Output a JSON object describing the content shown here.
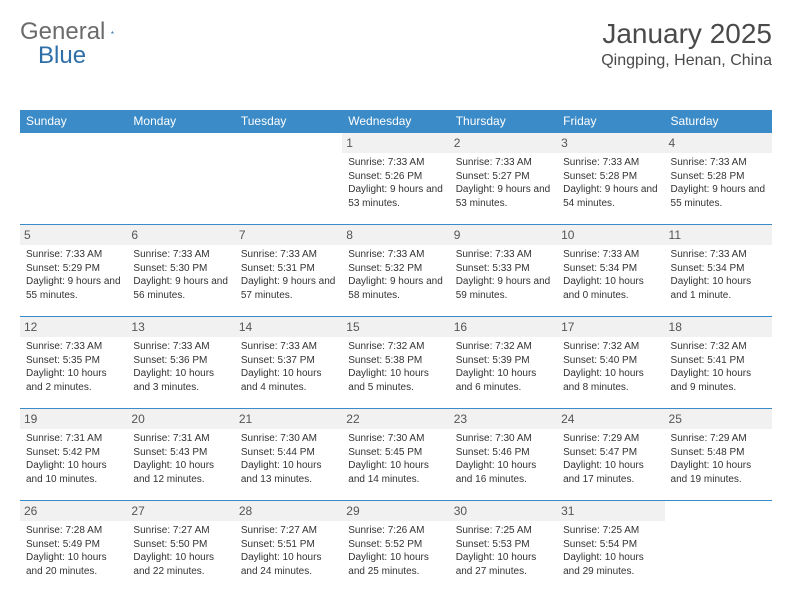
{
  "brand": {
    "text_gray": "General",
    "text_blue": "Blue"
  },
  "title": "January 2025",
  "location": "Qingping, Henan, China",
  "colors": {
    "header_bg": "#3b8bc8",
    "header_text": "#ffffff",
    "border": "#3b8bc8",
    "daynum_bg": "#f1f1f1",
    "text": "#333333",
    "brand_gray": "#6b6b6b",
    "brand_blue": "#2f6fa8"
  },
  "weekdays": [
    "Sunday",
    "Monday",
    "Tuesday",
    "Wednesday",
    "Thursday",
    "Friday",
    "Saturday"
  ],
  "weeks": [
    [
      null,
      null,
      null,
      {
        "n": "1",
        "sunrise": "7:33 AM",
        "sunset": "5:26 PM",
        "daylight": "9 hours and 53 minutes."
      },
      {
        "n": "2",
        "sunrise": "7:33 AM",
        "sunset": "5:27 PM",
        "daylight": "9 hours and 53 minutes."
      },
      {
        "n": "3",
        "sunrise": "7:33 AM",
        "sunset": "5:28 PM",
        "daylight": "9 hours and 54 minutes."
      },
      {
        "n": "4",
        "sunrise": "7:33 AM",
        "sunset": "5:28 PM",
        "daylight": "9 hours and 55 minutes."
      }
    ],
    [
      {
        "n": "5",
        "sunrise": "7:33 AM",
        "sunset": "5:29 PM",
        "daylight": "9 hours and 55 minutes."
      },
      {
        "n": "6",
        "sunrise": "7:33 AM",
        "sunset": "5:30 PM",
        "daylight": "9 hours and 56 minutes."
      },
      {
        "n": "7",
        "sunrise": "7:33 AM",
        "sunset": "5:31 PM",
        "daylight": "9 hours and 57 minutes."
      },
      {
        "n": "8",
        "sunrise": "7:33 AM",
        "sunset": "5:32 PM",
        "daylight": "9 hours and 58 minutes."
      },
      {
        "n": "9",
        "sunrise": "7:33 AM",
        "sunset": "5:33 PM",
        "daylight": "9 hours and 59 minutes."
      },
      {
        "n": "10",
        "sunrise": "7:33 AM",
        "sunset": "5:34 PM",
        "daylight": "10 hours and 0 minutes."
      },
      {
        "n": "11",
        "sunrise": "7:33 AM",
        "sunset": "5:34 PM",
        "daylight": "10 hours and 1 minute."
      }
    ],
    [
      {
        "n": "12",
        "sunrise": "7:33 AM",
        "sunset": "5:35 PM",
        "daylight": "10 hours and 2 minutes."
      },
      {
        "n": "13",
        "sunrise": "7:33 AM",
        "sunset": "5:36 PM",
        "daylight": "10 hours and 3 minutes."
      },
      {
        "n": "14",
        "sunrise": "7:33 AM",
        "sunset": "5:37 PM",
        "daylight": "10 hours and 4 minutes."
      },
      {
        "n": "15",
        "sunrise": "7:32 AM",
        "sunset": "5:38 PM",
        "daylight": "10 hours and 5 minutes."
      },
      {
        "n": "16",
        "sunrise": "7:32 AM",
        "sunset": "5:39 PM",
        "daylight": "10 hours and 6 minutes."
      },
      {
        "n": "17",
        "sunrise": "7:32 AM",
        "sunset": "5:40 PM",
        "daylight": "10 hours and 8 minutes."
      },
      {
        "n": "18",
        "sunrise": "7:32 AM",
        "sunset": "5:41 PM",
        "daylight": "10 hours and 9 minutes."
      }
    ],
    [
      {
        "n": "19",
        "sunrise": "7:31 AM",
        "sunset": "5:42 PM",
        "daylight": "10 hours and 10 minutes."
      },
      {
        "n": "20",
        "sunrise": "7:31 AM",
        "sunset": "5:43 PM",
        "daylight": "10 hours and 12 minutes."
      },
      {
        "n": "21",
        "sunrise": "7:30 AM",
        "sunset": "5:44 PM",
        "daylight": "10 hours and 13 minutes."
      },
      {
        "n": "22",
        "sunrise": "7:30 AM",
        "sunset": "5:45 PM",
        "daylight": "10 hours and 14 minutes."
      },
      {
        "n": "23",
        "sunrise": "7:30 AM",
        "sunset": "5:46 PM",
        "daylight": "10 hours and 16 minutes."
      },
      {
        "n": "24",
        "sunrise": "7:29 AM",
        "sunset": "5:47 PM",
        "daylight": "10 hours and 17 minutes."
      },
      {
        "n": "25",
        "sunrise": "7:29 AM",
        "sunset": "5:48 PM",
        "daylight": "10 hours and 19 minutes."
      }
    ],
    [
      {
        "n": "26",
        "sunrise": "7:28 AM",
        "sunset": "5:49 PM",
        "daylight": "10 hours and 20 minutes."
      },
      {
        "n": "27",
        "sunrise": "7:27 AM",
        "sunset": "5:50 PM",
        "daylight": "10 hours and 22 minutes."
      },
      {
        "n": "28",
        "sunrise": "7:27 AM",
        "sunset": "5:51 PM",
        "daylight": "10 hours and 24 minutes."
      },
      {
        "n": "29",
        "sunrise": "7:26 AM",
        "sunset": "5:52 PM",
        "daylight": "10 hours and 25 minutes."
      },
      {
        "n": "30",
        "sunrise": "7:25 AM",
        "sunset": "5:53 PM",
        "daylight": "10 hours and 27 minutes."
      },
      {
        "n": "31",
        "sunrise": "7:25 AM",
        "sunset": "5:54 PM",
        "daylight": "10 hours and 29 minutes."
      },
      null
    ]
  ],
  "labels": {
    "sunrise": "Sunrise: ",
    "sunset": "Sunset: ",
    "daylight": "Daylight: "
  }
}
